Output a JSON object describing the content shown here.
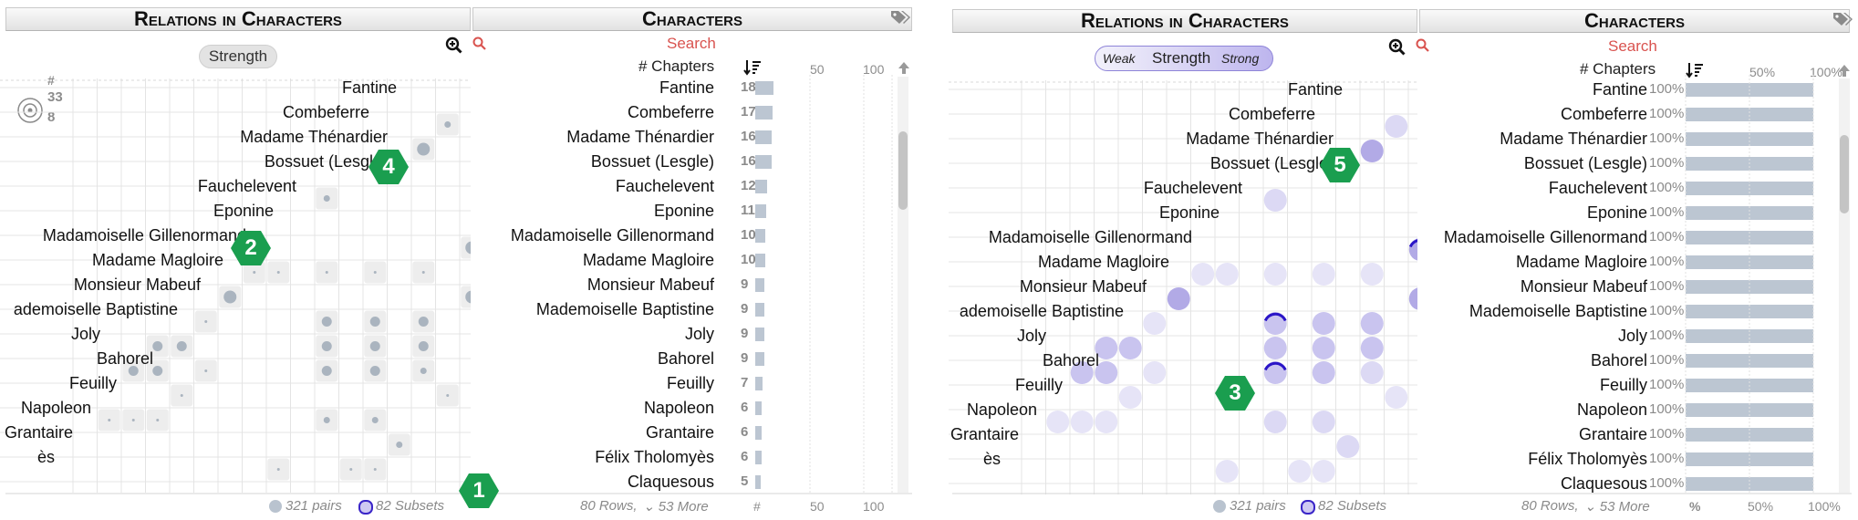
{
  "left_panel": {
    "matrix_title": "Relations in Characters",
    "list_title": "Characters",
    "strength_label": "Strength",
    "search_label": "Search",
    "chapters_header": "# Chapters",
    "axis_ticks": [
      "50",
      "100"
    ],
    "legend": {
      "hash": "#",
      "max": "33",
      "min": "8"
    },
    "footer_pairs": "321 pairs",
    "footer_subsets": "82 Subsets",
    "footer_rows": "80 Rows,",
    "footer_more": "53 More",
    "footer_hash": "#",
    "footer_ticks": [
      "50",
      "100"
    ],
    "badges": [
      "1",
      "2",
      "4"
    ]
  },
  "right_panel": {
    "matrix_title": "Relations in Characters",
    "list_title": "Characters",
    "weak_label": "Weak",
    "strength_label": "Strength",
    "strong_label": "Strong",
    "search_label": "Search",
    "chapters_header": "# Chapters",
    "axis_ticks": [
      "50%",
      "100%"
    ],
    "footer_pairs": "321 pairs",
    "footer_subsets": "82 Subsets",
    "footer_rows": "80 Rows,",
    "footer_more": "53 More",
    "footer_percent": "%",
    "footer_ticks": [
      "50%",
      "100%"
    ],
    "badges": [
      "3",
      "5"
    ]
  },
  "characters": [
    {
      "name": "Fantine",
      "chapters": 18,
      "matrix_label": "Fantine"
    },
    {
      "name": "Combeferre",
      "chapters": 17,
      "matrix_label": "Combeferre"
    },
    {
      "name": "Madame Thénardier",
      "chapters": 16,
      "matrix_label": "Madame Thénardier"
    },
    {
      "name": "Bossuet (Lesgle)",
      "chapters": 16,
      "matrix_label": "Bossuet (Lesgle)"
    },
    {
      "name": "Fauchelevent",
      "chapters": 12,
      "matrix_label": "Fauchelevent"
    },
    {
      "name": "Eponine",
      "chapters": 11,
      "matrix_label": "Eponine"
    },
    {
      "name": "Madamoiselle Gillenormand",
      "chapters": 10,
      "matrix_label": "Madamoiselle Gillenormand"
    },
    {
      "name": "Madame Magloire",
      "chapters": 10,
      "matrix_label": "Madame Magloire"
    },
    {
      "name": "Monsieur Mabeuf",
      "chapters": 9,
      "matrix_label": "Monsieur Mabeuf"
    },
    {
      "name": "Mademoiselle Baptistine",
      "chapters": 9,
      "matrix_label": "ademoiselle Baptistine"
    },
    {
      "name": "Joly",
      "chapters": 9,
      "matrix_label": "Joly"
    },
    {
      "name": "Bahorel",
      "chapters": 9,
      "matrix_label": "Bahorel"
    },
    {
      "name": "Feuilly",
      "chapters": 7,
      "matrix_label": "Feuilly"
    },
    {
      "name": "Napoleon",
      "chapters": 6,
      "matrix_label": "Napoleon"
    },
    {
      "name": "Grantaire",
      "chapters": 6,
      "matrix_label": "Grantaire"
    },
    {
      "name": "Félix Tholomyès",
      "chapters": 6,
      "matrix_label": "ès"
    },
    {
      "name": "Claquesous",
      "chapters": 5,
      "matrix_label": ""
    }
  ],
  "percent_value": "100%",
  "icon_names": [
    "tag-icon",
    "zoom-in-icon",
    "search-icon",
    "sort-descending-icon",
    "scroll-up-icon",
    "size-legend-icon"
  ]
}
